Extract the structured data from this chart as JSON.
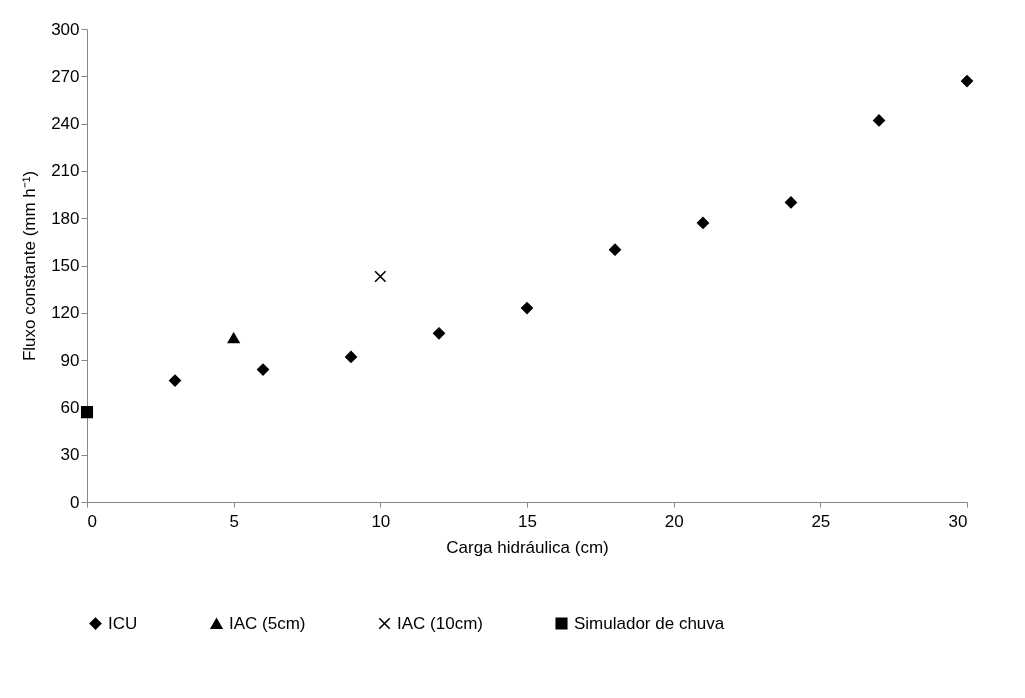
{
  "chart_data": {
    "type": "scatter",
    "xlabel": "Carga hidráulica (cm)",
    "ylabel": "Fluxo constante (mm h⁻¹)",
    "xlim": [
      0,
      30
    ],
    "xticks": [
      0,
      5,
      10,
      15,
      20,
      25,
      30
    ],
    "ylim": [
      0,
      300
    ],
    "yticks": [
      0,
      30,
      60,
      90,
      120,
      150,
      180,
      210,
      240,
      270,
      300
    ],
    "grid": false,
    "legend": "bottom",
    "series": [
      {
        "name": "ICU",
        "color": "#000000",
        "marker": "diamond",
        "x": [
          3,
          6,
          9,
          12,
          15,
          18,
          21,
          24,
          27,
          30
        ],
        "values": [
          77,
          84,
          92,
          107,
          123,
          160,
          177,
          190,
          242,
          267
        ]
      },
      {
        "name": "IAC (5cm)",
        "color": "#000000",
        "marker": "triangle",
        "x": [
          5
        ],
        "values": [
          104
        ]
      },
      {
        "name": "IAC (10cm)",
        "color": "#000000",
        "marker": "cross",
        "x": [
          10
        ],
        "values": [
          143
        ]
      },
      {
        "name": "Simulador de chuva",
        "color": "#000000",
        "marker": "square",
        "x": [
          0
        ],
        "values": [
          57
        ]
      }
    ]
  }
}
